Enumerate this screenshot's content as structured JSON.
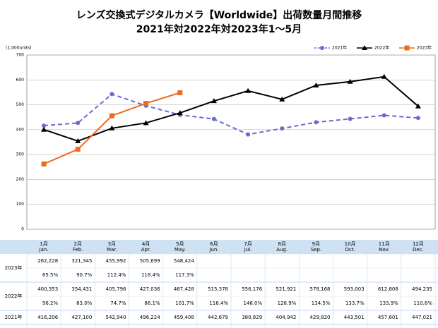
{
  "chart_data": {
    "type": "line",
    "title": "レンズ交換式デジタルカメラ【Worldwide】出荷数量月間推移",
    "subtitle": "2021年対2022年対2023年1～5月",
    "y_label": "(1,000units)",
    "categories": [
      "1月",
      "2月",
      "3月",
      "4月",
      "5月",
      "6月",
      "7月",
      "8月",
      "9月",
      "10月",
      "11月",
      "12月"
    ],
    "categories_en": [
      "Jan.",
      "Feb.",
      "Mar.",
      "Apr.",
      "May.",
      "Jun.",
      "Jul.",
      "Aug.",
      "Sep.",
      "Oct.",
      "Nov.",
      "Dec."
    ],
    "ylim": [
      0,
      700
    ],
    "yticks": [
      0,
      100,
      200,
      300,
      400,
      500,
      600,
      700
    ],
    "grid": true,
    "legend": "top-right",
    "series": [
      {
        "name": "2021年",
        "color": "#6b6bcf",
        "dash": true,
        "marker": "circle",
        "values": [
          416.206,
          427.1,
          542.94,
          496.224,
          459.408,
          442.679,
          380.829,
          404.942,
          429.82,
          443.501,
          457.601,
          447.021
        ],
        "value_labels": [
          "416,206",
          "427,100",
          "542,940",
          "496,224",
          "459,408",
          "442,679",
          "380,829",
          "404,942",
          "429,820",
          "443,501",
          "457,601",
          "447,021"
        ]
      },
      {
        "name": "2022年",
        "color": "#000000",
        "dash": false,
        "marker": "triangle",
        "values": [
          400.353,
          354.431,
          405.796,
          427.036,
          467.428,
          515.378,
          556.176,
          521.921,
          578.168,
          593.003,
          612.808,
          494.235
        ],
        "value_labels": [
          "400,353",
          "354,431",
          "405,796",
          "427,036",
          "467,428",
          "515,378",
          "556,176",
          "521,921",
          "578,168",
          "593,003",
          "612,808",
          "494,235"
        ],
        "ratio_labels": [
          "96.2%",
          "83.0%",
          "74.7%",
          "86.1%",
          "101.7%",
          "116.4%",
          "146.0%",
          "128.9%",
          "134.5%",
          "133.7%",
          "133.9%",
          "110.6%"
        ]
      },
      {
        "name": "2023年",
        "color": "#ee6a1c",
        "dash": false,
        "marker": "square",
        "values": [
          262.228,
          321.345,
          455.992,
          505.699,
          548.424,
          null,
          null,
          null,
          null,
          null,
          null,
          null
        ],
        "value_labels": [
          "262,228",
          "321,345",
          "455,992",
          "505,699",
          "548,424",
          null,
          null,
          null,
          null,
          null,
          null,
          null
        ],
        "ratio_labels": [
          "65.5%",
          "90.7%",
          "112.4%",
          "118.4%",
          "117.3%",
          null,
          null,
          null,
          null,
          null,
          null,
          null
        ]
      }
    ]
  }
}
